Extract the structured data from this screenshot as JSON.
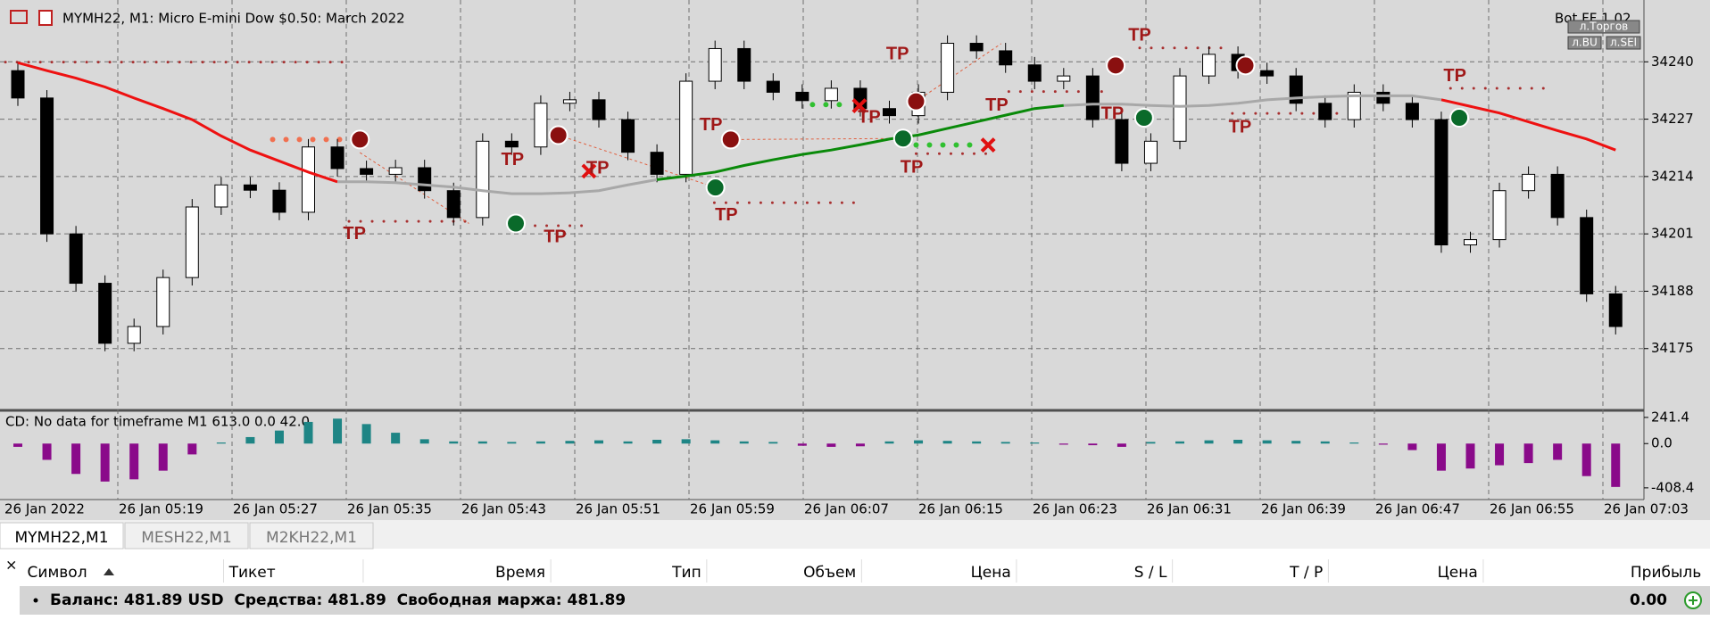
{
  "chart_data": [
    {
      "type": "candlestick",
      "title": "MYMH22, M1:  Micro E-mini Dow $0.50: March 2022",
      "open": [
        34238.0,
        34231.8,
        34201.0,
        34189.8,
        34176.2,
        34180.0,
        34191.1,
        34207.1,
        34212.1,
        34210.9,
        34205.9,
        34220.7,
        34215.8,
        34214.5,
        34216.0,
        34210.8,
        34204.7,
        34222.0,
        34220.7,
        34230.6,
        34231.4,
        34226.9,
        34219.5,
        34214.5,
        34235.6,
        34243.0,
        34235.6,
        34233.1,
        34231.2,
        34234.0,
        34229.4,
        34227.8,
        34233.1,
        34244.2,
        34242.5,
        34239.3,
        34235.6,
        34236.8,
        34226.9,
        34217.0,
        34222.0,
        34236.8,
        34241.7,
        34238.0,
        34236.8,
        34230.6,
        34226.9,
        34233.1,
        34230.6,
        34226.9,
        34198.5,
        34199.7,
        34210.8,
        34214.5,
        34204.7,
        34187.4
      ],
      "high": [
        34239.8,
        34233.6,
        34202.8,
        34191.6,
        34181.8,
        34192.9,
        34208.9,
        34213.9,
        34213.9,
        34212.7,
        34222.5,
        34222.5,
        34217.6,
        34217.8,
        34217.8,
        34212.6,
        34223.8,
        34223.8,
        34232.4,
        34233.2,
        34233.2,
        34228.7,
        34221.3,
        34237.4,
        34244.8,
        34244.8,
        34237.4,
        34234.9,
        34235.8,
        34235.8,
        34231.2,
        34234.9,
        34246.0,
        34246.0,
        34244.3,
        34241.1,
        34238.6,
        34238.6,
        34228.7,
        34223.8,
        34238.6,
        34243.5,
        34243.5,
        34239.8,
        34238.6,
        34232.4,
        34234.9,
        34234.9,
        34232.4,
        34228.7,
        34201.5,
        34212.6,
        34216.3,
        34216.3,
        34206.5,
        34189.2
      ],
      "low": [
        34230.0,
        34199.2,
        34188.0,
        34174.4,
        34174.4,
        34178.2,
        34189.3,
        34205.3,
        34209.1,
        34204.1,
        34204.1,
        34214.0,
        34212.7,
        34212.7,
        34209.0,
        34202.9,
        34202.9,
        34218.9,
        34218.9,
        34228.8,
        34225.1,
        34217.7,
        34212.7,
        34212.7,
        34233.8,
        34233.8,
        34231.3,
        34229.4,
        34229.4,
        34227.6,
        34226.0,
        34226.0,
        34231.3,
        34240.7,
        34237.5,
        34233.8,
        34233.8,
        34225.1,
        34215.2,
        34215.2,
        34220.2,
        34235.0,
        34236.2,
        34235.0,
        34228.8,
        34225.1,
        34225.1,
        34228.8,
        34225.1,
        34196.7,
        34196.7,
        34197.9,
        34209.0,
        34202.9,
        34185.6,
        34178.2
      ],
      "close": [
        34231.8,
        34201.0,
        34189.8,
        34176.2,
        34180.0,
        34191.1,
        34207.1,
        34212.1,
        34210.9,
        34205.9,
        34220.7,
        34215.8,
        34214.5,
        34216.0,
        34210.8,
        34204.7,
        34222.0,
        34220.7,
        34230.6,
        34231.4,
        34226.9,
        34219.5,
        34214.5,
        34235.6,
        34243.0,
        34235.6,
        34233.1,
        34231.2,
        34234.0,
        34229.4,
        34227.8,
        34233.1,
        34244.2,
        34242.5,
        34239.3,
        34235.6,
        34236.8,
        34226.9,
        34217.0,
        34222.0,
        34236.8,
        34241.7,
        34238.0,
        34236.8,
        34230.6,
        34226.9,
        34233.1,
        34230.6,
        34226.9,
        34198.5,
        34199.7,
        34210.8,
        34214.5,
        34204.7,
        34187.4,
        34180.0
      ],
      "up_color": "#ffffff",
      "down_color": "#000000",
      "lines": [
        {
          "color": "#ee1111",
          "values": [
            34239.8,
            34238.0,
            34236.3,
            34234.3,
            34231.8,
            34229.4,
            34226.9,
            34223.2,
            34220.0,
            34217.5,
            34215.0,
            34212.8,
            null,
            null,
            null,
            null,
            null,
            null,
            null,
            null,
            null,
            null,
            null,
            null,
            null,
            null,
            null,
            null,
            null,
            null,
            null,
            null,
            null,
            null,
            null,
            null,
            null,
            null,
            null,
            null,
            null,
            null,
            null,
            null,
            null,
            null,
            null,
            null,
            null,
            34231.4,
            34229.9,
            34228.4,
            34226.4,
            34224.4,
            34222.5,
            34220.0
          ]
        },
        {
          "color": "#a8a8a8",
          "values": [
            null,
            null,
            null,
            null,
            null,
            null,
            null,
            null,
            null,
            null,
            null,
            34212.8,
            34212.8,
            34212.6,
            34212.1,
            34211.6,
            34210.8,
            34210.1,
            34210.1,
            34210.3,
            34210.8,
            34212.1,
            34213.3,
            null,
            null,
            null,
            null,
            null,
            null,
            null,
            null,
            null,
            null,
            null,
            null,
            null,
            34230.1,
            34230.4,
            34230.4,
            34230.1,
            34229.9,
            34230.1,
            34230.6,
            34231.4,
            34231.8,
            34232.1,
            34232.3,
            34232.3,
            34232.3,
            34231.4,
            null,
            null,
            null,
            null,
            null,
            null
          ]
        },
        {
          "color": "#0a8a0a",
          "values": [
            null,
            null,
            null,
            null,
            null,
            null,
            null,
            null,
            null,
            null,
            null,
            null,
            null,
            null,
            null,
            null,
            null,
            null,
            null,
            null,
            null,
            null,
            34213.3,
            34214.1,
            34215.0,
            34216.5,
            34217.8,
            34219.0,
            34220.0,
            34221.2,
            34222.5,
            34223.4,
            34224.9,
            34226.4,
            34227.9,
            34229.4,
            34230.1,
            null,
            null,
            null,
            null,
            null,
            null,
            null,
            null,
            null,
            null,
            null,
            null,
            null,
            null,
            null,
            null,
            null,
            null,
            null
          ]
        }
      ],
      "ylim": [
        34161.4,
        34252.8
      ],
      "yticks": [
        34175,
        34188,
        34201,
        34214,
        34227,
        34240
      ],
      "grid": true,
      "time_labels": [
        "26 Jan 2022",
        "26 Jan 05:19",
        "26 Jan 05:27",
        "26 Jan 05:35",
        "26 Jan 05:43",
        "26 Jan 05:51",
        "26 Jan 05:59",
        "26 Jan 06:07",
        "26 Jan 06:15",
        "26 Jan 06:23",
        "26 Jan 06:31",
        "26 Jan 06:39",
        "26 Jan 06:47",
        "26 Jan 06:55",
        "26 Jan 07:03"
      ],
      "annotations": [
        "TP",
        "TP",
        "TP",
        "TP",
        "TP",
        "TP",
        "TP",
        "TP",
        "TP",
        "TP",
        "TP",
        "TP",
        "TP",
        "TP"
      ],
      "bot_label": "Bot FF 1.02",
      "buttons": [
        "л.Торгов",
        "л.BU",
        "л.SEl"
      ]
    },
    {
      "type": "bar",
      "title": "CD: No data for timeframe M1 613.0 0.0 42.0",
      "values": [
        -30,
        -150,
        -280,
        -350,
        -330,
        -250,
        -100,
        10,
        60,
        120,
        200,
        230,
        180,
        100,
        40,
        20,
        20,
        15,
        20,
        25,
        30,
        20,
        35,
        40,
        30,
        20,
        15,
        -20,
        -30,
        -25,
        20,
        30,
        25,
        20,
        15,
        10,
        -10,
        -15,
        -30,
        15,
        20,
        30,
        35,
        30,
        25,
        20,
        10,
        -10,
        -60,
        -250,
        -230,
        -200,
        -180,
        -150,
        -300,
        -400
      ],
      "pos_color": "#1e8585",
      "neg_color": "#8a0a8a",
      "ylim": [
        -500,
        290
      ],
      "yticks": [
        241.4,
        {
          "value": 0,
          "label": "0.0"
        },
        -408.4
      ]
    }
  ],
  "tabs": [
    "MYMH22,M1",
    "MESH22,M1",
    "M2KH22,M1"
  ],
  "table": {
    "columns": [
      "Символ",
      "Тикет",
      "Время",
      "Тип",
      "Объем",
      "Цена",
      "S / L",
      "T / P",
      "Цена",
      "Прибыль"
    ],
    "balance": "Баланс: 481.89 USD  Средства: 481.89  Свободная маржа: 481.89",
    "profit": "0.00"
  }
}
